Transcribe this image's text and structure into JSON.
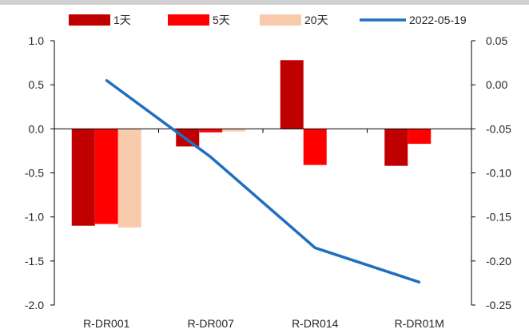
{
  "chart_data": {
    "type": "bar",
    "categories": [
      "R-DR001",
      "R-DR007",
      "R-DR014",
      "R-DR01M"
    ],
    "series": [
      {
        "name": "1天",
        "type": "bar",
        "axis": "left",
        "color": "#C00000",
        "values": [
          -1.1,
          -0.2,
          0.78,
          -0.42
        ]
      },
      {
        "name": "5天",
        "type": "bar",
        "axis": "left",
        "color": "#FF0000",
        "values": [
          -1.08,
          -0.04,
          -0.41,
          -0.17
        ]
      },
      {
        "name": "20天",
        "type": "bar",
        "axis": "left",
        "color": "#F8CBAD",
        "values": [
          -1.12,
          -0.03,
          null,
          null
        ]
      },
      {
        "name": "2022-05-19",
        "type": "line",
        "axis": "right",
        "color": "#1F6FBF",
        "values": [
          0.005,
          -0.082,
          -0.185,
          -0.224
        ]
      }
    ],
    "y_left": {
      "min": -2.0,
      "max": 1.0,
      "ticks": [
        1.0,
        0.5,
        0.0,
        -0.5,
        -1.0,
        -1.5,
        -2.0
      ],
      "tick_labels": [
        "1.0",
        "0.5",
        "0.0",
        "-0.5",
        "-1.0",
        "-1.5",
        "-2.0"
      ]
    },
    "y_right": {
      "min": -0.25,
      "max": 0.05,
      "ticks": [
        0.05,
        0.0,
        -0.05,
        -0.1,
        -0.15,
        -0.2,
        -0.25
      ],
      "tick_labels": [
        "0.05",
        "0.00",
        "-0.05",
        "-0.10",
        "-0.15",
        "-0.20",
        "-0.25"
      ]
    },
    "legend_position": "top",
    "grid": false,
    "title": "",
    "xlabel": "",
    "ylabel": ""
  }
}
